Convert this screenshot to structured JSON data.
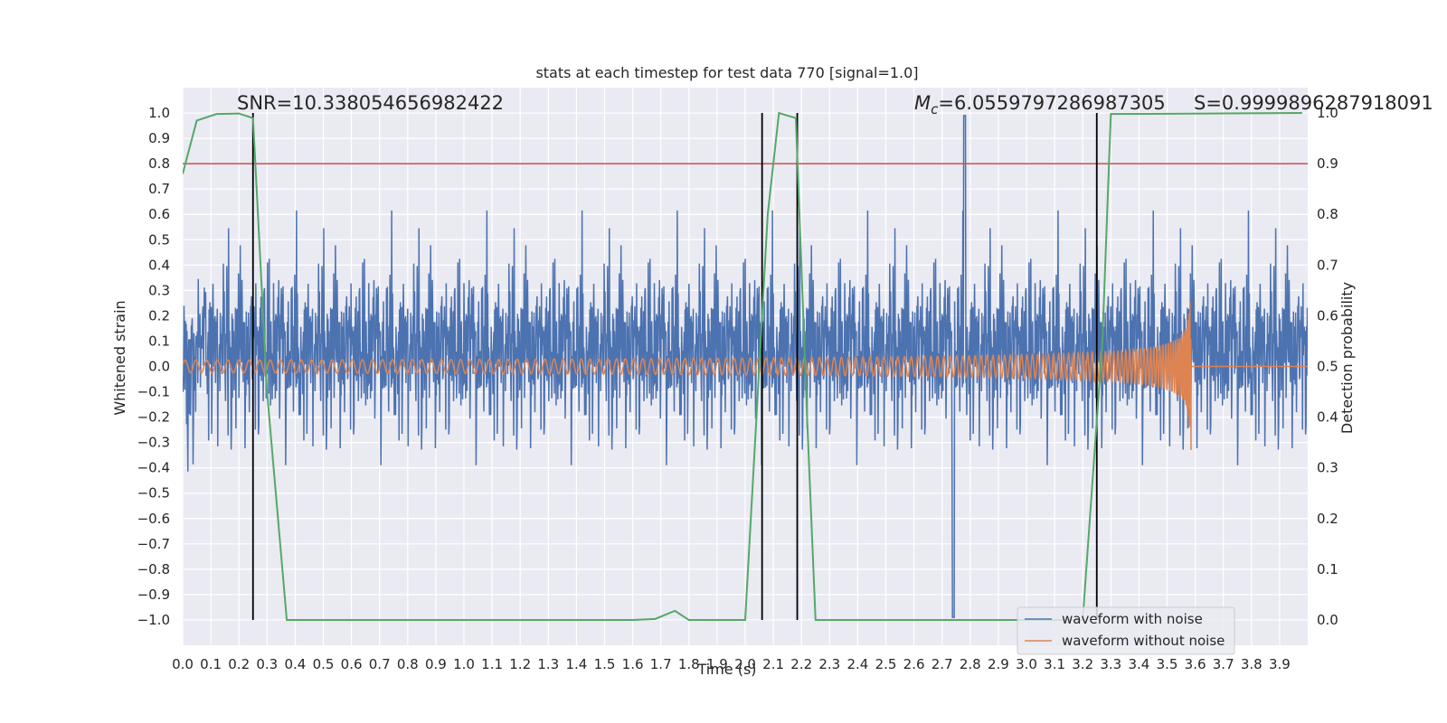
{
  "chart_data": {
    "type": "line",
    "title": "stats at each timestep for test data 770 [signal=1.0]",
    "xlabel": "Time (s)",
    "ylabel": "Whitened strain",
    "y2label": "Detection probability",
    "xlim": [
      0.0,
      4.0
    ],
    "ylim": [
      -1.1,
      1.1
    ],
    "y2lim": [
      -0.05,
      1.05
    ],
    "x_ticks": [
      "0.0",
      "0.1",
      "0.2",
      "0.3",
      "0.4",
      "0.5",
      "0.6",
      "0.7",
      "0.8",
      "0.9",
      "1.0",
      "1.1",
      "1.2",
      "1.3",
      "1.4",
      "1.5",
      "1.6",
      "1.7",
      "1.8",
      "1.9",
      "2.0",
      "2.1",
      "2.2",
      "2.3",
      "2.4",
      "2.5",
      "2.6",
      "2.7",
      "2.8",
      "2.9",
      "3.0",
      "3.1",
      "3.2",
      "3.3",
      "3.4",
      "3.5",
      "3.6",
      "3.7",
      "3.8",
      "3.9"
    ],
    "y_ticks": [
      "1.0",
      "0.9",
      "0.8",
      "0.7",
      "0.6",
      "0.5",
      "0.4",
      "0.3",
      "0.2",
      "0.1",
      "0.0",
      "−0.1",
      "−0.2",
      "−0.3",
      "−0.4",
      "−0.5",
      "−0.6",
      "−0.7",
      "−0.8",
      "−0.9",
      "−1.0"
    ],
    "y2_ticks": [
      "1.0",
      "0.9",
      "0.8",
      "0.7",
      "0.6",
      "0.5",
      "0.4",
      "0.3",
      "0.2",
      "0.1",
      "0.0"
    ],
    "annotations": {
      "snr": "SNR=10.338054656982422",
      "mc_symbol": "M",
      "mc_sub": "c",
      "mc_value": "=6.0559797286987305",
      "s": "S=0.9999896287918091"
    },
    "legend": {
      "position": "bottom-right",
      "entries": [
        "waveform with noise",
        "waveform without noise"
      ]
    },
    "threshold_line": {
      "y2": 0.9,
      "color": "#c44e52"
    },
    "vertical_lines_x": [
      0.25,
      2.06,
      2.185,
      3.25
    ],
    "noise_envelope": {
      "typical_amplitude": 0.35,
      "max": 0.99,
      "min": -0.99,
      "spike_up_at": 2.78,
      "spike_down_at": 2.74
    },
    "chirp": {
      "start": 0.0,
      "end": 3.585,
      "start_amplitude": 0.025,
      "peak_amplitude": 0.28,
      "peak_negative": -0.33,
      "merger_time": 3.585
    },
    "detection_probability": {
      "x": [
        0.0,
        0.05,
        0.12,
        0.2,
        0.25,
        0.3,
        0.37,
        1.6,
        1.68,
        1.75,
        1.8,
        1.9,
        2.0,
        2.08,
        2.12,
        2.18,
        2.22,
        2.25,
        3.2,
        3.27,
        3.3,
        3.98
      ],
      "y": [
        0.88,
        0.985,
        0.998,
        0.999,
        0.99,
        0.45,
        0.0,
        0.0,
        0.002,
        0.018,
        0.0,
        0.0,
        0.0,
        0.8,
        1.0,
        0.99,
        0.4,
        0.0,
        0.0,
        0.55,
        0.998,
        1.0
      ]
    },
    "series": [
      {
        "name": "waveform with noise",
        "color": "#4c72b0"
      },
      {
        "name": "waveform without noise",
        "color": "#dd8452"
      },
      {
        "name": "detection probability",
        "color": "#55a868"
      }
    ],
    "background": "#eaeaf2",
    "grid": true
  }
}
